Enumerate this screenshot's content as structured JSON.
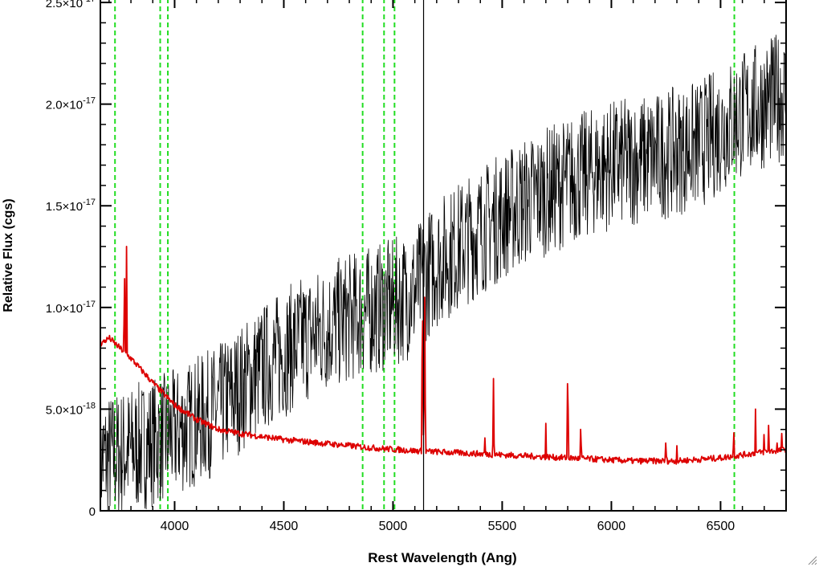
{
  "chart_data": {
    "type": "line",
    "title": "",
    "xlabel": "Rest Wavelength (Ang)",
    "ylabel": "Relative Flux (cgs)",
    "xlim": [
      3660,
      6800
    ],
    "ylim": [
      0,
      2.52e-17
    ],
    "x_ticks": [
      {
        "value": 4000,
        "label": "4000"
      },
      {
        "value": 4500,
        "label": "4500"
      },
      {
        "value": 5000,
        "label": "5000"
      },
      {
        "value": 5500,
        "label": "5500"
      },
      {
        "value": 6000,
        "label": "6000"
      },
      {
        "value": 6500,
        "label": "6500"
      }
    ],
    "y_ticks": [
      {
        "value": 0,
        "mantissa": "0",
        "exp": ""
      },
      {
        "value": 5e-18,
        "mantissa": "5.0×10",
        "exp": "-18"
      },
      {
        "value": 1e-17,
        "mantissa": "1.0×10",
        "exp": "-17"
      },
      {
        "value": 1.5e-17,
        "mantissa": "1.5×10",
        "exp": "-17"
      },
      {
        "value": 2e-17,
        "mantissa": "2.0×10",
        "exp": "-17"
      },
      {
        "value": 2.5e-17,
        "mantissa": "2.5×10",
        "exp": "-17"
      }
    ],
    "grid": false,
    "reference_lines": {
      "color": "#22dd22",
      "style": "dashed",
      "wavelengths": [
        3727,
        3934,
        3969,
        4861,
        4959,
        5007,
        6563
      ]
    },
    "marker_line": {
      "wavelength": 5140,
      "color": "#000000"
    },
    "series": [
      {
        "color": "#000000",
        "noise_level": 3.2e-18,
        "trend": [
          [
            3660,
            2.5e-18
          ],
          [
            3800,
            3e-18
          ],
          [
            4000,
            3.8e-18
          ],
          [
            4200,
            5e-18
          ],
          [
            4400,
            7e-18
          ],
          [
            4600,
            8.5e-18
          ],
          [
            4800,
            9.5e-18
          ],
          [
            5000,
            1.02e-17
          ],
          [
            5100,
            1.08e-17
          ],
          [
            5200,
            1.22e-17
          ],
          [
            5400,
            1.38e-17
          ],
          [
            5600,
            1.52e-17
          ],
          [
            5800,
            1.62e-17
          ],
          [
            6000,
            1.7e-17
          ],
          [
            6200,
            1.74e-17
          ],
          [
            6400,
            1.8e-17
          ],
          [
            6600,
            1.95e-17
          ],
          [
            6800,
            2.05e-17
          ]
        ]
      },
      {
        "color": "#dd0000",
        "noise_level": 1.5e-19,
        "trend": [
          [
            3660,
            8.2e-18
          ],
          [
            3700,
            8.5e-18
          ],
          [
            3800,
            7.5e-18
          ],
          [
            3900,
            6.3e-18
          ],
          [
            4000,
            5.2e-18
          ],
          [
            4100,
            4.5e-18
          ],
          [
            4200,
            4e-18
          ],
          [
            4300,
            3.8e-18
          ],
          [
            4500,
            3.5e-18
          ],
          [
            4700,
            3.3e-18
          ],
          [
            4900,
            3.1e-18
          ],
          [
            5100,
            2.95e-18
          ],
          [
            5300,
            2.85e-18
          ],
          [
            5500,
            2.75e-18
          ],
          [
            5700,
            2.65e-18
          ],
          [
            5900,
            2.55e-18
          ],
          [
            6100,
            2.45e-18
          ],
          [
            6300,
            2.45e-18
          ],
          [
            6500,
            2.6e-18
          ],
          [
            6700,
            2.9e-18
          ],
          [
            6800,
            3e-18
          ]
        ],
        "emission_lines": [
          [
            3770,
            1.37e-17
          ],
          [
            3780,
            1.3e-17
          ],
          [
            3934,
            5.9e-18
          ],
          [
            3969,
            5.5e-18
          ],
          [
            4420,
            4.2e-18
          ],
          [
            4610,
            3.8e-18
          ],
          [
            4780,
            3.6e-18
          ],
          [
            5110,
            3.3e-18
          ],
          [
            5135,
            1.12e-17
          ],
          [
            5145,
            1.05e-17
          ],
          [
            5420,
            4.3e-18
          ],
          [
            5460,
            6.5e-18
          ],
          [
            5700,
            4.3e-18
          ],
          [
            5800,
            7.5e-18
          ],
          [
            5860,
            4.8e-18
          ],
          [
            6250,
            4e-18
          ],
          [
            6300,
            3.2e-18
          ],
          [
            6560,
            4.6e-18
          ],
          [
            6660,
            5e-18
          ],
          [
            6700,
            4.5e-18
          ],
          [
            6720,
            4.2e-18
          ],
          [
            6760,
            4e-18
          ],
          [
            6780,
            3.8e-18
          ]
        ]
      }
    ]
  }
}
